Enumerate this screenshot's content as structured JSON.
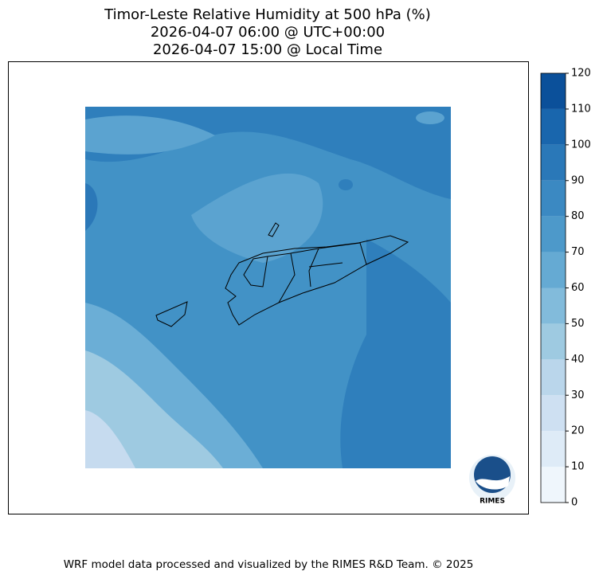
{
  "title_lines": [
    "Timor-Leste Relative Humidity at 500 hPa (%)",
    "2026-04-07 06:00 @ UTC+00:00",
    "2026-04-07 15:00 @ Local Time"
  ],
  "colorbar": {
    "levels": [
      0,
      10,
      20,
      30,
      40,
      50,
      60,
      70,
      80,
      90,
      100,
      110,
      120
    ],
    "colors": [
      "#eff6fc",
      "#deebf7",
      "#cee0f2",
      "#bad6eb",
      "#9ecae1",
      "#82bbdb",
      "#65aad3",
      "#4d99ca",
      "#3b89c2",
      "#2a78b8",
      "#1966ad",
      "#0b509a",
      "#083b7c"
    ]
  },
  "footer": "WRF model data processed and visualized by the RIMES R&D Team. © 2025",
  "logo": {
    "text": "RIMES"
  }
}
